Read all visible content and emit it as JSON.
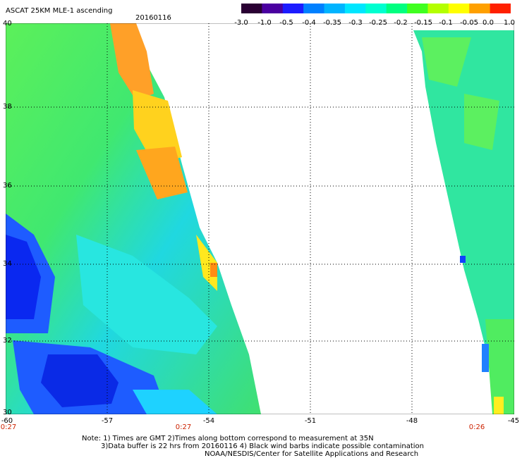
{
  "header": {
    "title": "ASCAT 25KM MLE-1 ascending",
    "date": "20160116"
  },
  "colorbar": {
    "labels": [
      "-3.0",
      "-1.0",
      "-0.5",
      "-0.4",
      "-0.35",
      "-0.3",
      "-0.25",
      "-0.2",
      "-0.15",
      "-0.1",
      "-0.05",
      "0.0",
      "1.0"
    ],
    "colors": [
      "#2a0033",
      "#4a00a0",
      "#1c1cff",
      "#0080ff",
      "#00b4ff",
      "#00e6ff",
      "#00ffd0",
      "#00ff80",
      "#40ff20",
      "#b4ff00",
      "#ffff00",
      "#ffa000",
      "#ff2000"
    ]
  },
  "map": {
    "lat_labels": [
      "40",
      "38",
      "36",
      "34",
      "32",
      "30"
    ],
    "lon_labels": [
      "-60",
      "-57",
      "-54",
      "-51",
      "-48",
      "-45"
    ],
    "time_labels": [
      "0:27",
      "0:27",
      "0:26"
    ],
    "lat_range": [
      30,
      40
    ],
    "lon_range": [
      -60,
      -45
    ]
  },
  "notes": {
    "line1": "Note: 1) Times are GMT 2)Times along bottom correspond to measurement at 35N",
    "line2": "3)Data buffer is 22 hrs from 20160116 4) Black wind barbs indicate possible contamination",
    "line3": "NOAA/NESDIS/Center for Satellite Applications and Research"
  },
  "colors": {
    "background": "#ffffff",
    "time_label": "#cc2200"
  }
}
